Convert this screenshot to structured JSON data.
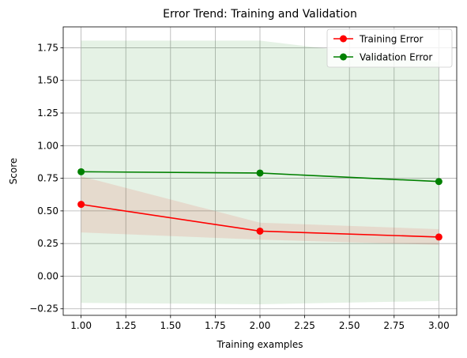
{
  "chart_data": {
    "type": "line",
    "title": "Error Trend: Training and Validation",
    "xlabel": "Training examples",
    "ylabel": "Score",
    "xlim": [
      0.9,
      3.1
    ],
    "ylim": [
      -0.3,
      1.91
    ],
    "xticks": [
      1.0,
      1.25,
      1.5,
      1.75,
      2.0,
      2.25,
      2.5,
      2.75,
      3.0
    ],
    "xtick_labels": [
      "1.00",
      "1.25",
      "1.50",
      "1.75",
      "2.00",
      "2.25",
      "2.50",
      "2.75",
      "3.00"
    ],
    "yticks": [
      -0.25,
      0.0,
      0.25,
      0.5,
      0.75,
      1.0,
      1.25,
      1.5,
      1.75
    ],
    "ytick_labels": [
      "−0.25",
      "0.00",
      "0.25",
      "0.50",
      "0.75",
      "1.00",
      "1.25",
      "1.50",
      "1.75"
    ],
    "grid": true,
    "legend_position": "top-right",
    "x": [
      1,
      2,
      3
    ],
    "series": [
      {
        "name": "Training Error",
        "color": "#ff0000",
        "values": [
          0.55,
          0.345,
          0.3
        ],
        "band_lower": [
          0.335,
          0.28,
          0.24
        ],
        "band_upper": [
          0.765,
          0.41,
          0.36
        ]
      },
      {
        "name": "Validation Error",
        "color": "#008000",
        "values": [
          0.8,
          0.79,
          0.725
        ],
        "band_lower": [
          -0.205,
          -0.215,
          -0.19
        ],
        "band_upper": [
          1.805,
          1.805,
          1.64
        ]
      }
    ]
  }
}
